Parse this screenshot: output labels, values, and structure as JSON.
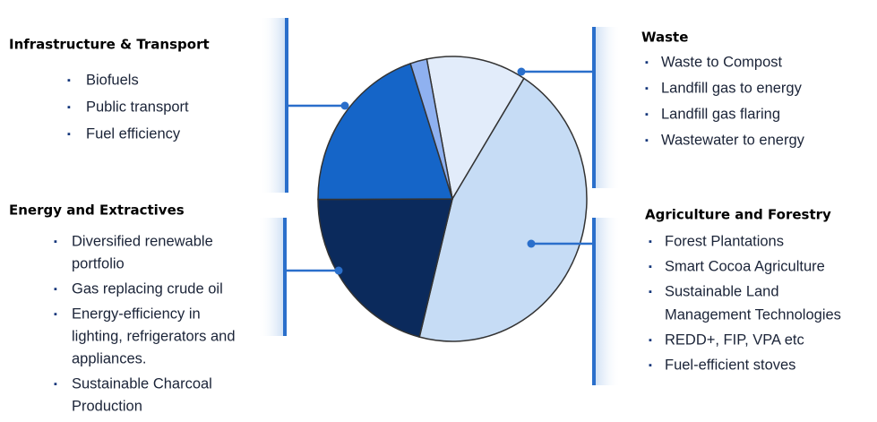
{
  "chart_data": {
    "type": "pie",
    "categories": [
      "Waste",
      "Agriculture and Forestry",
      "Energy and Extractives",
      "Infrastructure & Transport",
      null
    ],
    "values": [
      12,
      45,
      21,
      20,
      2
    ],
    "colors": [
      "#e2ecfa",
      "#c6dcf5",
      "#0b2a5c",
      "#1565c8",
      "#8fb1f0"
    ],
    "callouts": [
      {
        "items": [
          [
            "Waste to Compost"
          ],
          [
            "Landfill gas to energy"
          ],
          [
            "Landfill gas flaring"
          ],
          [
            "Wastewater to energy"
          ]
        ]
      },
      {
        "items": [
          [
            "Forest Plantations"
          ],
          [
            "Smart Cocoa Agriculture"
          ],
          [
            "Sustainable Land",
            "Management Technologies"
          ],
          [
            "REDD+, FIP, VPA etc"
          ],
          [
            "Fuel-efficient stoves"
          ]
        ]
      },
      {
        "items": [
          [
            "Diversified renewable",
            "portfolio"
          ],
          [
            "Gas replacing crude oil"
          ],
          [
            "Energy-efficiency in",
            "lighting, refrigerators and",
            "appliances."
          ],
          [
            "Sustainable Charcoal",
            "Production"
          ]
        ]
      },
      {
        "items": [
          [
            "Biofuels"
          ],
          [
            "Public transport"
          ],
          [
            "Fuel efficiency"
          ]
        ]
      }
    ]
  }
}
